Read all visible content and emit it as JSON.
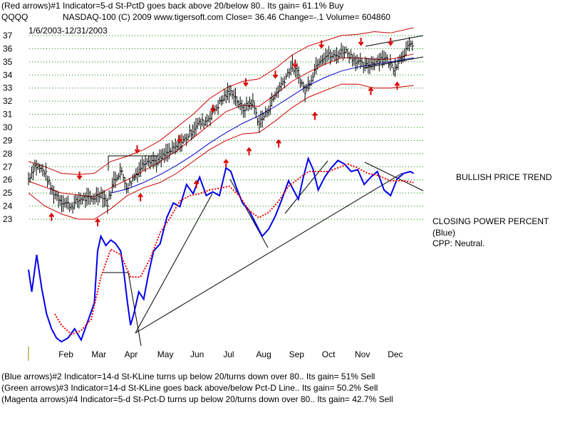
{
  "header": {
    "line1": "(Red arrows)#1 Indicator=5-d St-PctD goes back above 20/below 80..  Its gain= 61.1% Buy",
    "symbol": "QQQQ",
    "line2": "NASDAQ-100  (C) 2009 www.tigersoft.com     Close=  36.46  Change=-.1 Volume=  604860",
    "date_range": "1/6/2003-12/31/2003"
  },
  "side_labels": {
    "trend": "BULLISH PRICE TREND",
    "cpp_title": "CLOSING POWER PERCENT",
    "cpp_color": "(Blue)",
    "cpp_status": "CPP: Neutral."
  },
  "footer": {
    "line1": "(Blue arrows)#2 Indicator=14-d St-KLine turns up below 20/turns down over 80.. Its gain= 51% Sell",
    "line2": "(Green arrows)#3 Indicator=14-d St-KLine goes back above/below Pct-D Line.. Its gain= 50.2% Sell",
    "line3": "(Magenta arrows)#4 Indicator=5-d St-Pct-D turns up below 20/turns down over 80..  Its gain= 42.7% Sell"
  },
  "colors": {
    "price_bars": "#000000",
    "band": "#cc0000",
    "ma_red": "#dd0000",
    "ma_blue": "#0000cc",
    "cpp_line": "#0000ee",
    "cpp_ma": "#ee0000",
    "arrows": "#dd0000",
    "grid": "#008000"
  },
  "chart_data": {
    "type": "line",
    "title": "",
    "ylim": [
      23,
      37
    ],
    "y_ticks": [
      23,
      24,
      25,
      26,
      27,
      28,
      29,
      30,
      31,
      32,
      33,
      34,
      35,
      36,
      37
    ],
    "x_ticks": [
      {
        "label": "Feb",
        "month": 1
      },
      {
        "label": "Mar",
        "month": 2
      },
      {
        "label": "Apr",
        "month": 3
      },
      {
        "label": "May",
        "month": 4
      },
      {
        "label": "Jun",
        "month": 5
      },
      {
        "label": "Jul",
        "month": 6
      },
      {
        "label": "Aug",
        "month": 7
      },
      {
        "label": "Sep",
        "month": 8
      },
      {
        "label": "Oct",
        "month": 9
      },
      {
        "label": "Nov",
        "month": 10
      },
      {
        "label": "Dec",
        "month": 11
      }
    ],
    "price_close": [
      [
        0.0,
        26.1
      ],
      [
        0.2,
        27.1
      ],
      [
        0.5,
        26.6
      ],
      [
        0.7,
        25.2
      ],
      [
        1.0,
        24.4
      ],
      [
        1.3,
        24.0
      ],
      [
        1.6,
        24.6
      ],
      [
        1.9,
        24.5
      ],
      [
        2.2,
        25.0
      ],
      [
        2.4,
        24.2
      ],
      [
        2.6,
        26.0
      ],
      [
        2.8,
        26.7
      ],
      [
        3.0,
        25.4
      ],
      [
        3.3,
        26.6
      ],
      [
        3.6,
        27.6
      ],
      [
        3.9,
        27.4
      ],
      [
        4.2,
        28.0
      ],
      [
        4.5,
        28.5
      ],
      [
        4.8,
        29.2
      ],
      [
        5.1,
        30.2
      ],
      [
        5.4,
        30.5
      ],
      [
        5.7,
        31.5
      ],
      [
        6.0,
        32.5
      ],
      [
        6.2,
        32.7
      ],
      [
        6.5,
        31.3
      ],
      [
        6.8,
        32.0
      ],
      [
        7.0,
        30.3
      ],
      [
        7.2,
        31.0
      ],
      [
        7.5,
        32.5
      ],
      [
        7.8,
        33.8
      ],
      [
        8.0,
        34.7
      ],
      [
        8.2,
        34.0
      ],
      [
        8.4,
        32.7
      ],
      [
        8.6,
        33.8
      ],
      [
        8.8,
        35.1
      ],
      [
        9.0,
        35.5
      ],
      [
        9.3,
        35.4
      ],
      [
        9.6,
        35.9
      ],
      [
        9.9,
        35.2
      ],
      [
        10.2,
        34.6
      ],
      [
        10.5,
        35.0
      ],
      [
        10.8,
        35.4
      ],
      [
        11.1,
        34.5
      ],
      [
        11.4,
        35.7
      ],
      [
        11.7,
        36.5
      ]
    ],
    "upper_band": [
      [
        0.0,
        27.4
      ],
      [
        0.5,
        27.0
      ],
      [
        1.0,
        26.5
      ],
      [
        1.5,
        26.4
      ],
      [
        2.0,
        26.5
      ],
      [
        2.5,
        27.4
      ],
      [
        3.0,
        27.8
      ],
      [
        3.5,
        28.3
      ],
      [
        4.0,
        29.0
      ],
      [
        4.5,
        30.0
      ],
      [
        5.0,
        31.0
      ],
      [
        5.5,
        32.2
      ],
      [
        6.0,
        33.0
      ],
      [
        6.5,
        33.5
      ],
      [
        7.0,
        33.7
      ],
      [
        7.5,
        34.5
      ],
      [
        8.0,
        35.5
      ],
      [
        8.5,
        36.2
      ],
      [
        9.0,
        36.6
      ],
      [
        9.5,
        37.0
      ],
      [
        10.0,
        37.1
      ],
      [
        10.5,
        37.3
      ],
      [
        11.0,
        37.2
      ],
      [
        11.7,
        37.6
      ]
    ],
    "lower_band": [
      [
        0.0,
        25.0
      ],
      [
        0.5,
        24.0
      ],
      [
        1.0,
        23.4
      ],
      [
        1.5,
        23.0
      ],
      [
        2.0,
        23.0
      ],
      [
        2.5,
        23.8
      ],
      [
        3.0,
        24.8
      ],
      [
        3.5,
        25.4
      ],
      [
        4.0,
        25.8
      ],
      [
        4.5,
        26.5
      ],
      [
        5.0,
        27.4
      ],
      [
        5.5,
        28.3
      ],
      [
        6.0,
        29.0
      ],
      [
        6.5,
        29.5
      ],
      [
        7.0,
        29.6
      ],
      [
        7.5,
        30.5
      ],
      [
        8.0,
        31.5
      ],
      [
        8.5,
        32.3
      ],
      [
        9.0,
        32.8
      ],
      [
        9.5,
        33.3
      ],
      [
        10.0,
        33.3
      ],
      [
        10.5,
        33.0
      ],
      [
        11.0,
        33.0
      ],
      [
        11.7,
        33.2
      ]
    ],
    "ma_red": [
      [
        0.0,
        25.9
      ],
      [
        1.0,
        25.0
      ],
      [
        2.0,
        24.7
      ],
      [
        2.5,
        25.4
      ],
      [
        3.0,
        26.0
      ],
      [
        3.5,
        26.7
      ],
      [
        4.0,
        27.4
      ],
      [
        4.5,
        28.2
      ],
      [
        5.0,
        29.2
      ],
      [
        5.5,
        30.2
      ],
      [
        6.0,
        31.2
      ],
      [
        6.5,
        31.7
      ],
      [
        7.0,
        31.6
      ],
      [
        7.5,
        32.5
      ],
      [
        8.0,
        33.5
      ],
      [
        8.5,
        34.2
      ],
      [
        9.0,
        34.8
      ],
      [
        9.5,
        35.3
      ],
      [
        10.0,
        35.3
      ],
      [
        10.5,
        35.2
      ],
      [
        11.0,
        35.2
      ],
      [
        11.7,
        35.6
      ]
    ],
    "ma_blue": [
      [
        2.5,
        25.0
      ],
      [
        3.0,
        25.3
      ],
      [
        3.5,
        25.8
      ],
      [
        4.0,
        26.4
      ],
      [
        4.5,
        27.1
      ],
      [
        5.0,
        27.9
      ],
      [
        5.5,
        28.8
      ],
      [
        6.0,
        29.6
      ],
      [
        6.5,
        30.3
      ],
      [
        7.0,
        30.9
      ],
      [
        7.5,
        31.6
      ],
      [
        8.0,
        32.4
      ],
      [
        8.5,
        33.2
      ],
      [
        9.0,
        33.8
      ],
      [
        9.5,
        34.3
      ],
      [
        10.0,
        34.6
      ],
      [
        10.5,
        34.8
      ],
      [
        11.0,
        35.0
      ],
      [
        11.7,
        35.3
      ]
    ],
    "cpp": [
      [
        0.0,
        0.42
      ],
      [
        0.1,
        0.3
      ],
      [
        0.25,
        0.5
      ],
      [
        0.4,
        0.32
      ],
      [
        0.55,
        0.18
      ],
      [
        0.7,
        0.1
      ],
      [
        0.85,
        0.05
      ],
      [
        1.0,
        0.03
      ],
      [
        1.2,
        0.05
      ],
      [
        1.4,
        0.1
      ],
      [
        1.6,
        0.04
      ],
      [
        1.8,
        0.14
      ],
      [
        2.0,
        0.24
      ],
      [
        2.1,
        0.52
      ],
      [
        2.2,
        0.6
      ],
      [
        2.35,
        0.55
      ],
      [
        2.5,
        0.58
      ],
      [
        2.65,
        0.56
      ],
      [
        2.8,
        0.52
      ],
      [
        2.9,
        0.4
      ],
      [
        3.0,
        0.25
      ],
      [
        3.1,
        0.12
      ],
      [
        3.2,
        0.18
      ],
      [
        3.35,
        0.3
      ],
      [
        3.5,
        0.26
      ],
      [
        3.65,
        0.4
      ],
      [
        3.8,
        0.52
      ],
      [
        4.0,
        0.56
      ],
      [
        4.2,
        0.7
      ],
      [
        4.4,
        0.78
      ],
      [
        4.6,
        0.76
      ],
      [
        4.8,
        0.88
      ],
      [
        5.0,
        0.83
      ],
      [
        5.2,
        0.92
      ],
      [
        5.4,
        0.82
      ],
      [
        5.6,
        0.84
      ],
      [
        5.8,
        0.82
      ],
      [
        6.0,
        0.97
      ],
      [
        6.15,
        0.95
      ],
      [
        6.3,
        0.87
      ],
      [
        6.5,
        0.78
      ],
      [
        6.7,
        0.74
      ],
      [
        6.9,
        0.67
      ],
      [
        7.1,
        0.6
      ],
      [
        7.3,
        0.64
      ],
      [
        7.5,
        0.71
      ],
      [
        7.7,
        0.8
      ],
      [
        7.9,
        0.9
      ],
      [
        8.05,
        0.85
      ],
      [
        8.2,
        0.8
      ],
      [
        8.35,
        0.92
      ],
      [
        8.5,
        1.02
      ],
      [
        8.65,
        0.96
      ],
      [
        8.8,
        0.85
      ],
      [
        9.0,
        0.92
      ],
      [
        9.2,
        0.97
      ],
      [
        9.4,
        1.01
      ],
      [
        9.6,
        0.99
      ],
      [
        9.8,
        0.95
      ],
      [
        10.0,
        0.96
      ],
      [
        10.2,
        0.88
      ],
      [
        10.4,
        0.92
      ],
      [
        10.6,
        0.95
      ],
      [
        10.8,
        0.85
      ],
      [
        11.0,
        0.82
      ],
      [
        11.2,
        0.91
      ],
      [
        11.4,
        0.94
      ],
      [
        11.6,
        0.95
      ],
      [
        11.7,
        0.94
      ]
    ],
    "cpp_ma": [
      [
        0.8,
        0.18
      ],
      [
        1.0,
        0.12
      ],
      [
        1.3,
        0.07
      ],
      [
        1.6,
        0.09
      ],
      [
        1.9,
        0.15
      ],
      [
        2.2,
        0.38
      ],
      [
        2.5,
        0.53
      ],
      [
        2.8,
        0.5
      ],
      [
        3.1,
        0.38
      ],
      [
        3.4,
        0.38
      ],
      [
        3.7,
        0.48
      ],
      [
        4.0,
        0.62
      ],
      [
        4.3,
        0.7
      ],
      [
        4.6,
        0.79
      ],
      [
        4.9,
        0.82
      ],
      [
        5.2,
        0.83
      ],
      [
        5.5,
        0.85
      ],
      [
        5.8,
        0.86
      ],
      [
        6.1,
        0.87
      ],
      [
        6.4,
        0.82
      ],
      [
        6.7,
        0.74
      ],
      [
        7.0,
        0.7
      ],
      [
        7.3,
        0.73
      ],
      [
        7.6,
        0.79
      ],
      [
        7.9,
        0.87
      ],
      [
        8.2,
        0.91
      ],
      [
        8.5,
        0.95
      ],
      [
        8.8,
        0.95
      ],
      [
        9.1,
        0.95
      ],
      [
        9.4,
        0.97
      ],
      [
        9.7,
        0.99
      ],
      [
        10.0,
        0.97
      ],
      [
        10.3,
        0.94
      ],
      [
        10.6,
        0.93
      ],
      [
        11.0,
        0.9
      ],
      [
        11.4,
        0.9
      ],
      [
        11.7,
        0.89
      ]
    ],
    "down_arrows": [
      [
        1.55,
        26.2
      ],
      [
        3.3,
        28.2
      ],
      [
        4.6,
        29.0
      ],
      [
        5.6,
        31.3
      ],
      [
        6.6,
        33.3
      ],
      [
        7.5,
        33.9
      ],
      [
        8.1,
        34.7
      ],
      [
        8.9,
        36.2
      ],
      [
        10.1,
        36.4
      ],
      [
        11.0,
        36.4
      ]
    ],
    "up_arrows": [
      [
        0.7,
        23.3
      ],
      [
        2.1,
        22.9
      ],
      [
        3.4,
        24.8
      ],
      [
        5.1,
        25.8
      ],
      [
        6.0,
        27.4
      ],
      [
        6.7,
        28.3
      ],
      [
        7.6,
        28.9
      ],
      [
        8.7,
        31.0
      ],
      [
        10.4,
        32.9
      ],
      [
        11.2,
        33.3
      ]
    ]
  }
}
